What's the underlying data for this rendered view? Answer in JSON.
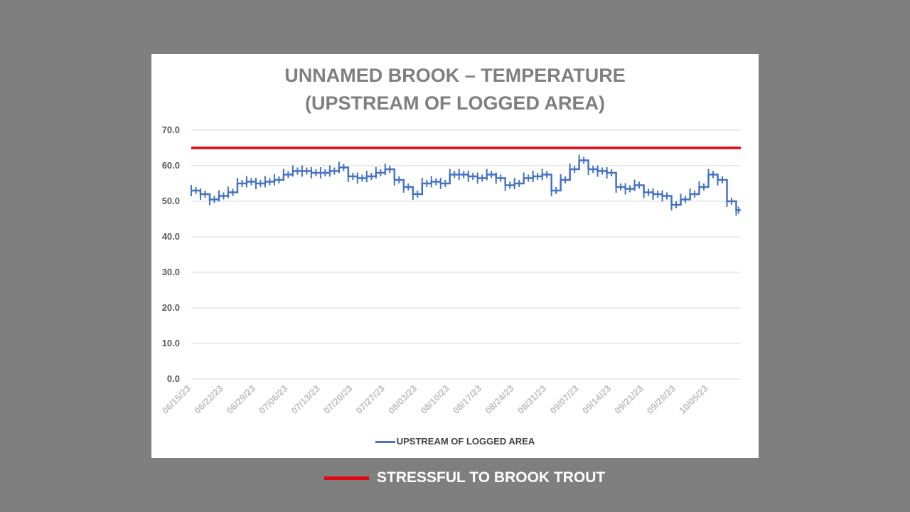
{
  "title_line1": "UNNAMED BROOK – TEMPERATURE",
  "title_line2": "(UPSTREAM OF LOGGED AREA)",
  "legend_label": "UPSTREAM OF LOGGED AREA",
  "reference_legend_label": "STRESSFUL TO BROOK TROUT",
  "colors": {
    "background": "#7f7f7f",
    "series": "#4472c4",
    "reference": "#e30613"
  },
  "chart_data": {
    "type": "line",
    "title": "UNNAMED BROOK – TEMPERATURE (UPSTREAM OF LOGGED AREA)",
    "ylim": [
      0,
      70
    ],
    "y_ticks": [
      "0.0",
      "10.0",
      "20.0",
      "30.0",
      "40.0",
      "50.0",
      "60.0",
      "70.0"
    ],
    "x_range": [
      "2023-06-15",
      "2023-10-12"
    ],
    "x_tick_labels": [
      "06/15/23",
      "06/22/23",
      "06/29/23",
      "07/06/23",
      "07/13/23",
      "07/20/23",
      "07/27/23",
      "08/03/23",
      "08/10/23",
      "08/17/23",
      "08/24/23",
      "08/31/23",
      "09/07/23",
      "09/14/23",
      "09/21/23",
      "09/28/23",
      "10/05/23"
    ],
    "grid": true,
    "legend_position": "bottom",
    "reference_line": {
      "name": "STRESSFUL TO BROOK TROUT",
      "y": 65
    },
    "series": [
      {
        "name": "UPSTREAM OF LOGGED AREA",
        "x": [
          "2023-06-15",
          "2023-06-17",
          "2023-06-19",
          "2023-06-21",
          "2023-06-23",
          "2023-06-25",
          "2023-06-27",
          "2023-06-29",
          "2023-07-01",
          "2023-07-03",
          "2023-07-05",
          "2023-07-07",
          "2023-07-09",
          "2023-07-11",
          "2023-07-13",
          "2023-07-15",
          "2023-07-17",
          "2023-07-19",
          "2023-07-21",
          "2023-07-23",
          "2023-07-25",
          "2023-07-27",
          "2023-07-29",
          "2023-07-31",
          "2023-08-02",
          "2023-08-04",
          "2023-08-06",
          "2023-08-08",
          "2023-08-10",
          "2023-08-12",
          "2023-08-14",
          "2023-08-16",
          "2023-08-18",
          "2023-08-20",
          "2023-08-22",
          "2023-08-24",
          "2023-08-26",
          "2023-08-28",
          "2023-08-30",
          "2023-09-01",
          "2023-09-03",
          "2023-09-05",
          "2023-09-07",
          "2023-09-09",
          "2023-09-11",
          "2023-09-13",
          "2023-09-15",
          "2023-09-17",
          "2023-09-19",
          "2023-09-21",
          "2023-09-23",
          "2023-09-25",
          "2023-09-27",
          "2023-09-29",
          "2023-10-01",
          "2023-10-03",
          "2023-10-05",
          "2023-10-07",
          "2023-10-09",
          "2023-10-11"
        ],
        "values": [
          53,
          52,
          50.5,
          51.5,
          52.5,
          55,
          55.5,
          55,
          55.5,
          56,
          57.5,
          58.5,
          58.5,
          58,
          58,
          58.5,
          59.5,
          57,
          56.5,
          57,
          58,
          59,
          56,
          54,
          52,
          55,
          55.5,
          55,
          57.5,
          57.5,
          57,
          56.5,
          57.5,
          56.5,
          54.5,
          55,
          56.5,
          57,
          57.5,
          53,
          56,
          59,
          61.5,
          59,
          58.5,
          58,
          54,
          53.5,
          54.5,
          52.5,
          52,
          51.5,
          49,
          50.5,
          52,
          54,
          57.5,
          56,
          50,
          47.5
        ]
      }
    ]
  }
}
